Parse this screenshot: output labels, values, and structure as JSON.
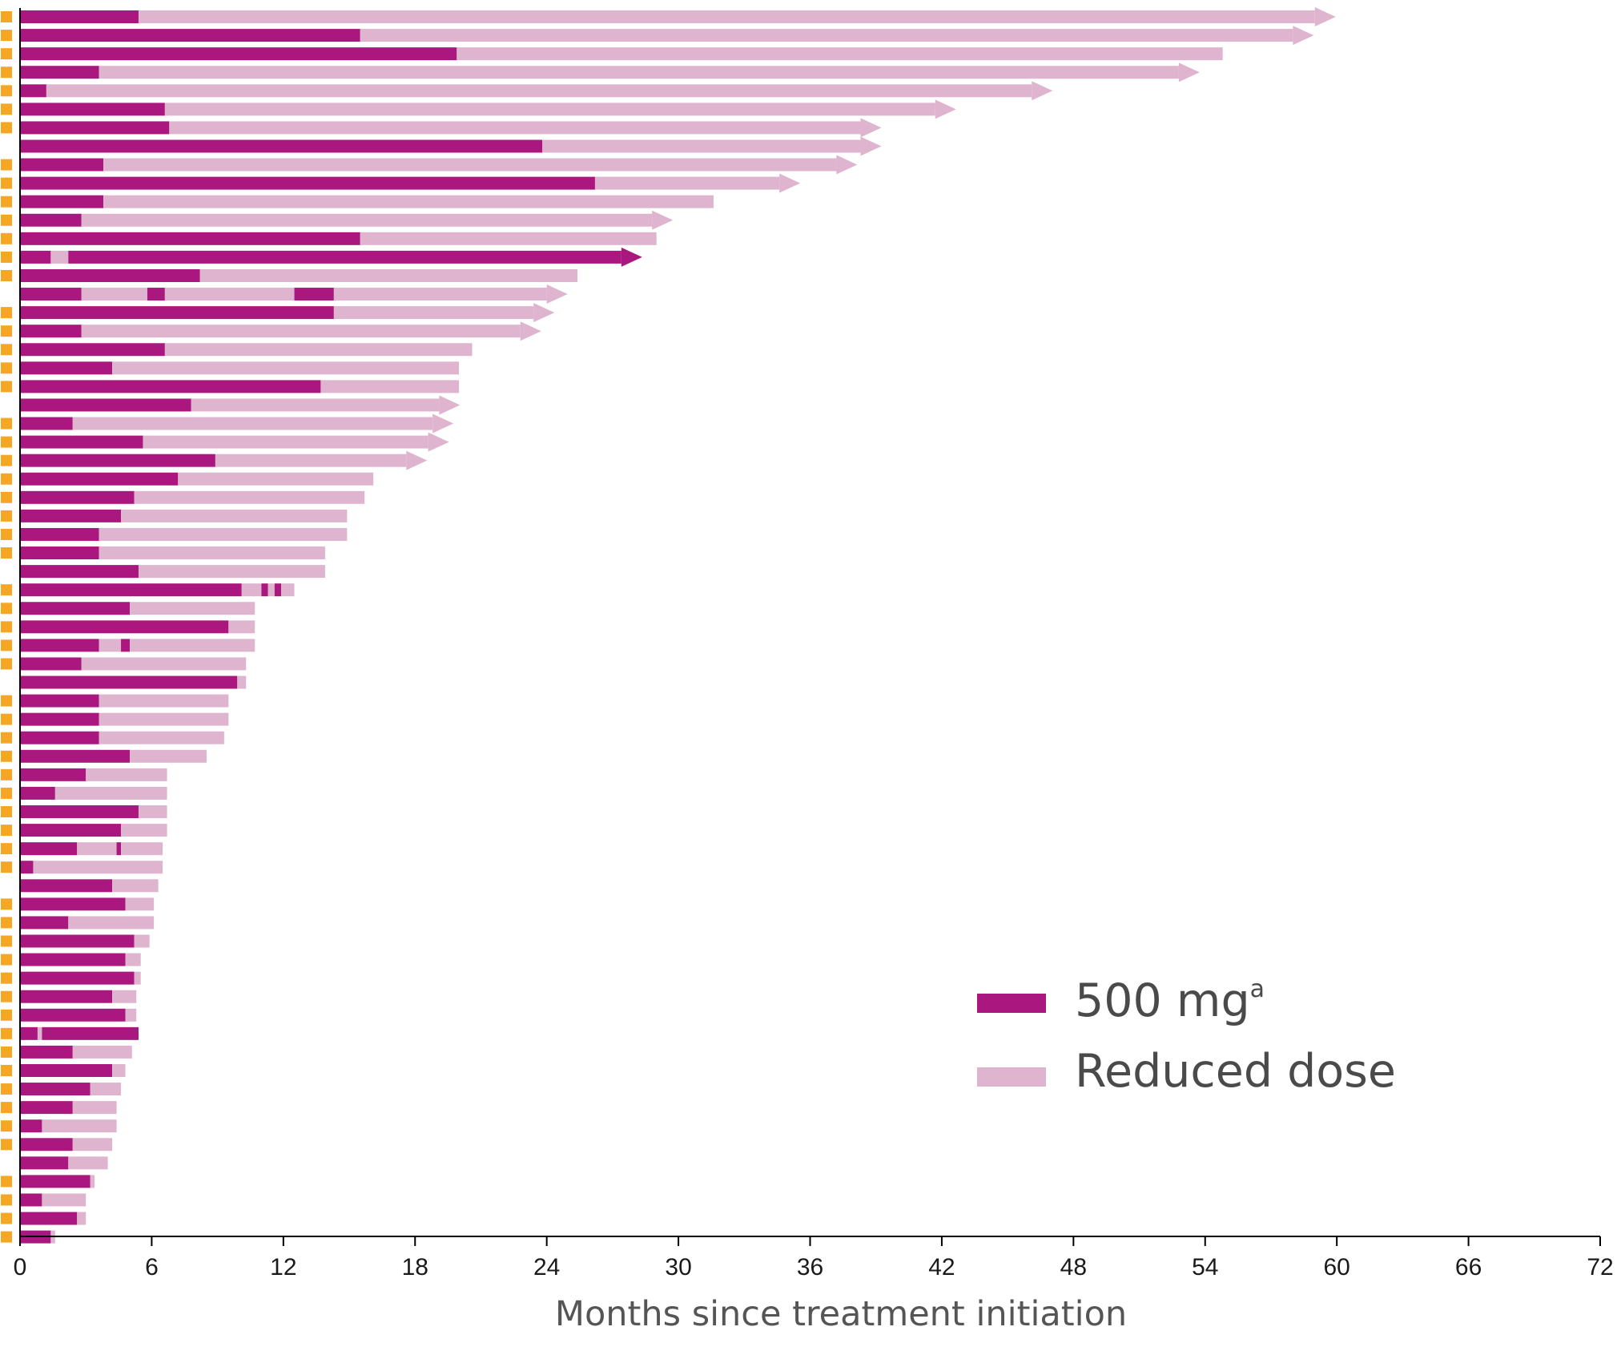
{
  "chart_data": {
    "type": "bar",
    "orientation": "horizontal",
    "title": "",
    "xlabel": "Months since treatment initiation",
    "ylabel": "",
    "xlim": [
      0,
      72
    ],
    "x_ticks": [
      0,
      6,
      12,
      18,
      24,
      30,
      36,
      42,
      48,
      54,
      60,
      66,
      72
    ],
    "grid": false,
    "legend_position": "bottom-right",
    "legend": [
      {
        "key": "full",
        "label": "500 mg",
        "superscript": "a",
        "color": "#a9177f"
      },
      {
        "key": "reduced",
        "label": "Reduced dose",
        "color": "#deb4cf"
      }
    ],
    "marker_color": "#f5a623",
    "rows": [
      {
        "segments": [
          [
            0,
            5.4,
            "full"
          ],
          [
            5.4,
            59.0,
            "reduced"
          ]
        ],
        "arrow": true,
        "marker": true
      },
      {
        "segments": [
          [
            0,
            15.5,
            "full"
          ],
          [
            15.5,
            58.0,
            "reduced"
          ]
        ],
        "arrow": true,
        "marker": true
      },
      {
        "segments": [
          [
            0,
            19.9,
            "full"
          ],
          [
            19.9,
            54.8,
            "reduced"
          ]
        ],
        "arrow": false,
        "marker": true
      },
      {
        "segments": [
          [
            0,
            3.6,
            "full"
          ],
          [
            3.6,
            52.8,
            "reduced"
          ]
        ],
        "arrow": true,
        "marker": true
      },
      {
        "segments": [
          [
            0,
            1.2,
            "full"
          ],
          [
            1.2,
            46.1,
            "reduced"
          ]
        ],
        "arrow": true,
        "marker": true
      },
      {
        "segments": [
          [
            0,
            6.6,
            "full"
          ],
          [
            6.6,
            41.7,
            "reduced"
          ]
        ],
        "arrow": true,
        "marker": true
      },
      {
        "segments": [
          [
            0,
            6.8,
            "full"
          ],
          [
            6.8,
            38.3,
            "reduced"
          ]
        ],
        "arrow": true,
        "marker": true
      },
      {
        "segments": [
          [
            0,
            23.8,
            "full"
          ],
          [
            23.8,
            38.3,
            "reduced"
          ]
        ],
        "arrow": true,
        "marker": false
      },
      {
        "segments": [
          [
            0,
            3.8,
            "full"
          ],
          [
            3.8,
            37.2,
            "reduced"
          ]
        ],
        "arrow": true,
        "marker": true
      },
      {
        "segments": [
          [
            0,
            26.2,
            "full"
          ],
          [
            26.2,
            34.6,
            "reduced"
          ]
        ],
        "arrow": true,
        "marker": true
      },
      {
        "segments": [
          [
            0,
            3.8,
            "full"
          ],
          [
            3.8,
            31.6,
            "reduced"
          ]
        ],
        "arrow": false,
        "marker": true
      },
      {
        "segments": [
          [
            0,
            2.8,
            "full"
          ],
          [
            2.8,
            28.8,
            "reduced"
          ]
        ],
        "arrow": true,
        "marker": true
      },
      {
        "segments": [
          [
            0,
            15.5,
            "full"
          ],
          [
            15.5,
            29.0,
            "reduced"
          ]
        ],
        "arrow": false,
        "marker": true
      },
      {
        "segments": [
          [
            0,
            1.4,
            "full"
          ],
          [
            1.4,
            2.2,
            "reduced"
          ],
          [
            2.2,
            27.4,
            "full"
          ]
        ],
        "arrow": true,
        "marker": true
      },
      {
        "segments": [
          [
            0,
            8.2,
            "full"
          ],
          [
            8.2,
            25.4,
            "reduced"
          ]
        ],
        "arrow": false,
        "marker": true
      },
      {
        "segments": [
          [
            0,
            2.8,
            "full"
          ],
          [
            2.8,
            5.8,
            "reduced"
          ],
          [
            5.8,
            6.6,
            "full"
          ],
          [
            6.6,
            12.5,
            "reduced"
          ],
          [
            12.5,
            14.3,
            "full"
          ],
          [
            14.3,
            24.0,
            "reduced"
          ]
        ],
        "arrow": true,
        "marker": false
      },
      {
        "segments": [
          [
            0,
            14.3,
            "full"
          ],
          [
            14.3,
            23.4,
            "reduced"
          ]
        ],
        "arrow": true,
        "marker": true
      },
      {
        "segments": [
          [
            0,
            2.8,
            "full"
          ],
          [
            2.8,
            22.8,
            "reduced"
          ]
        ],
        "arrow": true,
        "marker": true
      },
      {
        "segments": [
          [
            0,
            6.6,
            "full"
          ],
          [
            6.6,
            20.6,
            "reduced"
          ]
        ],
        "arrow": false,
        "marker": true
      },
      {
        "segments": [
          [
            0,
            4.2,
            "full"
          ],
          [
            4.2,
            20.0,
            "reduced"
          ]
        ],
        "arrow": false,
        "marker": true
      },
      {
        "segments": [
          [
            0,
            13.7,
            "full"
          ],
          [
            13.7,
            20.0,
            "reduced"
          ]
        ],
        "arrow": false,
        "marker": true
      },
      {
        "segments": [
          [
            0,
            7.8,
            "full"
          ],
          [
            7.8,
            19.1,
            "reduced"
          ]
        ],
        "arrow": true,
        "marker": false
      },
      {
        "segments": [
          [
            0,
            2.4,
            "full"
          ],
          [
            2.4,
            18.8,
            "reduced"
          ]
        ],
        "arrow": true,
        "marker": true
      },
      {
        "segments": [
          [
            0,
            5.6,
            "full"
          ],
          [
            5.6,
            18.6,
            "reduced"
          ]
        ],
        "arrow": true,
        "marker": true
      },
      {
        "segments": [
          [
            0,
            8.9,
            "full"
          ],
          [
            8.9,
            17.6,
            "reduced"
          ]
        ],
        "arrow": true,
        "marker": true
      },
      {
        "segments": [
          [
            0,
            7.2,
            "full"
          ],
          [
            7.2,
            16.1,
            "reduced"
          ]
        ],
        "arrow": false,
        "marker": true
      },
      {
        "segments": [
          [
            0,
            5.2,
            "full"
          ],
          [
            5.2,
            15.7,
            "reduced"
          ]
        ],
        "arrow": false,
        "marker": true
      },
      {
        "segments": [
          [
            0,
            4.6,
            "full"
          ],
          [
            4.6,
            14.9,
            "reduced"
          ]
        ],
        "arrow": false,
        "marker": true
      },
      {
        "segments": [
          [
            0,
            3.6,
            "full"
          ],
          [
            3.6,
            14.9,
            "reduced"
          ]
        ],
        "arrow": false,
        "marker": true
      },
      {
        "segments": [
          [
            0,
            3.6,
            "full"
          ],
          [
            3.6,
            13.9,
            "reduced"
          ]
        ],
        "arrow": false,
        "marker": true
      },
      {
        "segments": [
          [
            0,
            5.4,
            "full"
          ],
          [
            5.4,
            13.9,
            "reduced"
          ]
        ],
        "arrow": false,
        "marker": false
      },
      {
        "segments": [
          [
            0,
            10.1,
            "full"
          ],
          [
            10.1,
            11.0,
            "reduced"
          ],
          [
            11.0,
            11.3,
            "full"
          ],
          [
            11.3,
            11.6,
            "reduced"
          ],
          [
            11.6,
            11.9,
            "full"
          ],
          [
            11.9,
            12.5,
            "reduced"
          ]
        ],
        "arrow": false,
        "marker": true
      },
      {
        "segments": [
          [
            0,
            5.0,
            "full"
          ],
          [
            5.0,
            10.7,
            "reduced"
          ]
        ],
        "arrow": false,
        "marker": true
      },
      {
        "segments": [
          [
            0,
            9.5,
            "full"
          ],
          [
            9.5,
            10.7,
            "reduced"
          ]
        ],
        "arrow": false,
        "marker": true
      },
      {
        "segments": [
          [
            0,
            3.6,
            "full"
          ],
          [
            3.6,
            4.6,
            "reduced"
          ],
          [
            4.6,
            5.0,
            "full"
          ],
          [
            5.0,
            10.7,
            "reduced"
          ]
        ],
        "arrow": false,
        "marker": true
      },
      {
        "segments": [
          [
            0,
            2.8,
            "full"
          ],
          [
            2.8,
            10.3,
            "reduced"
          ]
        ],
        "arrow": false,
        "marker": true
      },
      {
        "segments": [
          [
            0,
            9.9,
            "full"
          ],
          [
            9.9,
            10.3,
            "reduced"
          ]
        ],
        "arrow": false,
        "marker": false
      },
      {
        "segments": [
          [
            0,
            3.6,
            "full"
          ],
          [
            3.6,
            9.5,
            "reduced"
          ]
        ],
        "arrow": false,
        "marker": true
      },
      {
        "segments": [
          [
            0,
            3.6,
            "full"
          ],
          [
            3.6,
            9.5,
            "reduced"
          ]
        ],
        "arrow": false,
        "marker": true
      },
      {
        "segments": [
          [
            0,
            3.6,
            "full"
          ],
          [
            3.6,
            9.3,
            "reduced"
          ]
        ],
        "arrow": false,
        "marker": true
      },
      {
        "segments": [
          [
            0,
            5.0,
            "full"
          ],
          [
            5.0,
            8.5,
            "reduced"
          ]
        ],
        "arrow": false,
        "marker": true
      },
      {
        "segments": [
          [
            0,
            3.0,
            "full"
          ],
          [
            3.0,
            6.7,
            "reduced"
          ]
        ],
        "arrow": false,
        "marker": true
      },
      {
        "segments": [
          [
            0,
            1.6,
            "full"
          ],
          [
            1.6,
            6.7,
            "reduced"
          ]
        ],
        "arrow": false,
        "marker": true
      },
      {
        "segments": [
          [
            0,
            5.4,
            "full"
          ],
          [
            5.4,
            6.7,
            "reduced"
          ]
        ],
        "arrow": false,
        "marker": true
      },
      {
        "segments": [
          [
            0,
            4.6,
            "full"
          ],
          [
            4.6,
            6.7,
            "reduced"
          ]
        ],
        "arrow": false,
        "marker": true
      },
      {
        "segments": [
          [
            0,
            2.6,
            "full"
          ],
          [
            2.6,
            4.4,
            "reduced"
          ],
          [
            4.4,
            4.6,
            "full"
          ],
          [
            4.6,
            6.5,
            "reduced"
          ]
        ],
        "arrow": false,
        "marker": true
      },
      {
        "segments": [
          [
            0,
            0.6,
            "full"
          ],
          [
            0.6,
            6.5,
            "reduced"
          ]
        ],
        "arrow": false,
        "marker": true
      },
      {
        "segments": [
          [
            0,
            4.2,
            "full"
          ],
          [
            4.2,
            6.3,
            "reduced"
          ]
        ],
        "arrow": false,
        "marker": false
      },
      {
        "segments": [
          [
            0,
            4.8,
            "full"
          ],
          [
            4.8,
            6.1,
            "reduced"
          ]
        ],
        "arrow": false,
        "marker": true
      },
      {
        "segments": [
          [
            0,
            2.2,
            "full"
          ],
          [
            2.2,
            6.1,
            "reduced"
          ]
        ],
        "arrow": false,
        "marker": true
      },
      {
        "segments": [
          [
            0,
            5.2,
            "full"
          ],
          [
            5.2,
            5.9,
            "reduced"
          ]
        ],
        "arrow": false,
        "marker": true
      },
      {
        "segments": [
          [
            0,
            4.8,
            "full"
          ],
          [
            4.8,
            5.5,
            "reduced"
          ]
        ],
        "arrow": false,
        "marker": true
      },
      {
        "segments": [
          [
            0,
            5.2,
            "full"
          ],
          [
            5.2,
            5.5,
            "reduced"
          ]
        ],
        "arrow": false,
        "marker": true
      },
      {
        "segments": [
          [
            0,
            4.2,
            "full"
          ],
          [
            4.2,
            5.3,
            "reduced"
          ]
        ],
        "arrow": false,
        "marker": true
      },
      {
        "segments": [
          [
            0,
            4.8,
            "full"
          ],
          [
            4.8,
            5.3,
            "reduced"
          ]
        ],
        "arrow": false,
        "marker": true
      },
      {
        "segments": [
          [
            0,
            0.8,
            "full"
          ],
          [
            0.8,
            1.0,
            "reduced"
          ],
          [
            1.0,
            5.4,
            "full"
          ]
        ],
        "arrow": false,
        "marker": true
      },
      {
        "segments": [
          [
            0,
            2.4,
            "full"
          ],
          [
            2.4,
            5.1,
            "reduced"
          ]
        ],
        "arrow": false,
        "marker": true
      },
      {
        "segments": [
          [
            0,
            4.2,
            "full"
          ],
          [
            4.2,
            4.8,
            "reduced"
          ]
        ],
        "arrow": false,
        "marker": true
      },
      {
        "segments": [
          [
            0,
            3.2,
            "full"
          ],
          [
            3.2,
            4.6,
            "reduced"
          ]
        ],
        "arrow": false,
        "marker": true
      },
      {
        "segments": [
          [
            0,
            2.4,
            "full"
          ],
          [
            2.4,
            4.4,
            "reduced"
          ]
        ],
        "arrow": false,
        "marker": true
      },
      {
        "segments": [
          [
            0,
            1.0,
            "full"
          ],
          [
            1.0,
            4.4,
            "reduced"
          ]
        ],
        "arrow": false,
        "marker": true
      },
      {
        "segments": [
          [
            0,
            2.4,
            "full"
          ],
          [
            2.4,
            4.2,
            "reduced"
          ]
        ],
        "arrow": false,
        "marker": true
      },
      {
        "segments": [
          [
            0,
            2.2,
            "full"
          ],
          [
            2.2,
            4.0,
            "reduced"
          ]
        ],
        "arrow": false,
        "marker": false
      },
      {
        "segments": [
          [
            0,
            3.2,
            "full"
          ],
          [
            3.2,
            3.4,
            "reduced"
          ]
        ],
        "arrow": false,
        "marker": true
      },
      {
        "segments": [
          [
            0,
            1.0,
            "full"
          ],
          [
            1.0,
            3.0,
            "reduced"
          ]
        ],
        "arrow": false,
        "marker": true
      },
      {
        "segments": [
          [
            0,
            2.6,
            "full"
          ],
          [
            2.6,
            3.0,
            "reduced"
          ]
        ],
        "arrow": false,
        "marker": true
      },
      {
        "segments": [
          [
            0,
            1.4,
            "full"
          ],
          [
            1.4,
            1.6,
            "reduced"
          ]
        ],
        "arrow": false,
        "marker": true
      }
    ]
  }
}
